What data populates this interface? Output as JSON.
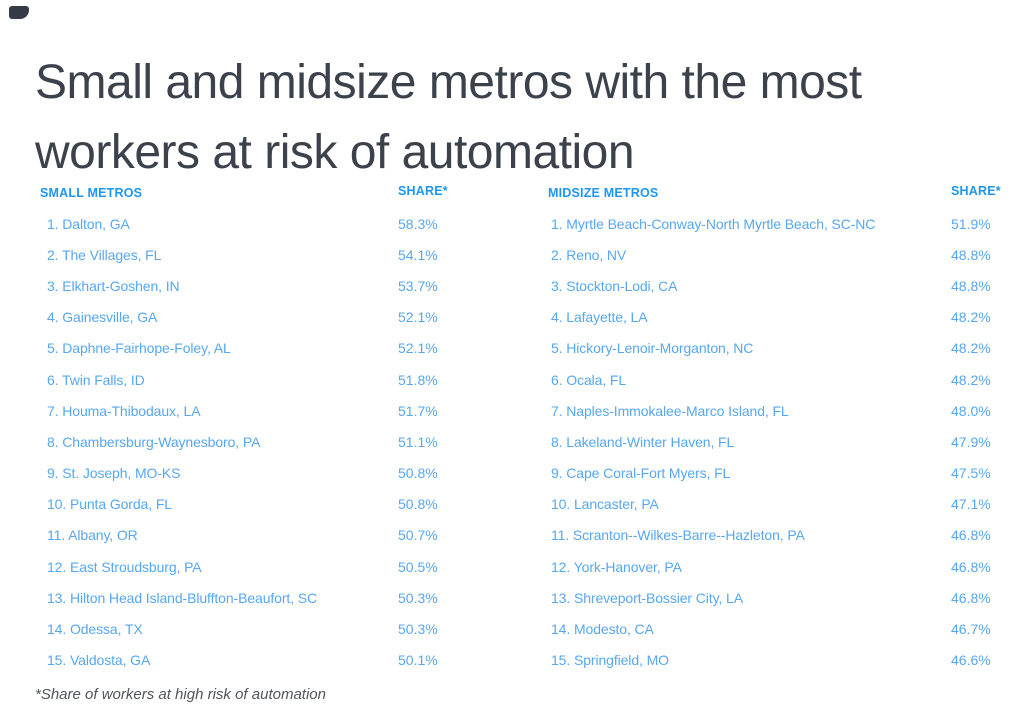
{
  "title": {
    "line1": "Small and midsize metros with the most",
    "line2": "workers at risk of automation"
  },
  "footnote": "*Share of workers at high risk of automation",
  "colors": {
    "title_text": "#3b424c",
    "header_blue": "#1d97f2",
    "row_blue": "#57a7f1",
    "footnote_text": "#50555c",
    "background": "#ffffff",
    "corner_mark": "#353b46"
  },
  "chart_data": {
    "type": "table",
    "title": "Small and midsize metros with the most workers at risk of automation",
    "footnote": "*Share of workers at high risk of automation",
    "value_unit": "percent share of workers at high risk of automation",
    "tables": [
      {
        "name": "Small metros",
        "header": {
          "metros": "SMALL METROS",
          "share": "SHARE*"
        },
        "rows": [
          {
            "rank": 1,
            "metro": "Dalton, GA",
            "share": 58.3
          },
          {
            "rank": 2,
            "metro": "The Villages, FL",
            "share": 54.1
          },
          {
            "rank": 3,
            "metro": "Elkhart-Goshen, IN",
            "share": 53.7
          },
          {
            "rank": 4,
            "metro": "Gainesville, GA",
            "share": 52.1
          },
          {
            "rank": 5,
            "metro": "Daphne-Fairhope-Foley, AL",
            "share": 52.1
          },
          {
            "rank": 6,
            "metro": "Twin Falls, ID",
            "share": 51.8
          },
          {
            "rank": 7,
            "metro": "Houma-Thibodaux, LA",
            "share": 51.7
          },
          {
            "rank": 8,
            "metro": "Chambersburg-Waynesboro, PA",
            "share": 51.1
          },
          {
            "rank": 9,
            "metro": "St. Joseph, MO-KS",
            "share": 50.8
          },
          {
            "rank": 10,
            "metro": "Punta Gorda, FL",
            "share": 50.8
          },
          {
            "rank": 11,
            "metro": "Albany, OR",
            "share": 50.7
          },
          {
            "rank": 12,
            "metro": "East Stroudsburg, PA",
            "share": 50.5
          },
          {
            "rank": 13,
            "metro": "Hilton Head Island-Bluffton-Beaufort, SC",
            "share": 50.3
          },
          {
            "rank": 14,
            "metro": "Odessa, TX",
            "share": 50.3
          },
          {
            "rank": 15,
            "metro": "Valdosta, GA",
            "share": 50.1
          }
        ]
      },
      {
        "name": "Midsize metros",
        "header": {
          "metros": "MIDSIZE METROS",
          "share": "SHARE*"
        },
        "rows": [
          {
            "rank": 1,
            "metro": "Myrtle Beach-Conway-North Myrtle Beach, SC-NC",
            "share": 51.9
          },
          {
            "rank": 2,
            "metro": "Reno, NV",
            "share": 48.8
          },
          {
            "rank": 3,
            "metro": "Stockton-Lodi, CA",
            "share": 48.8
          },
          {
            "rank": 4,
            "metro": "Lafayette, LA",
            "share": 48.2
          },
          {
            "rank": 5,
            "metro": "Hickory-Lenoir-Morganton, NC",
            "share": 48.2
          },
          {
            "rank": 6,
            "metro": "Ocala, FL",
            "share": 48.2
          },
          {
            "rank": 7,
            "metro": "Naples-Immokalee-Marco Island, FL",
            "share": 48.0
          },
          {
            "rank": 8,
            "metro": "Lakeland-Winter Haven, FL",
            "share": 47.9
          },
          {
            "rank": 9,
            "metro": "Cape Coral-Fort Myers, FL",
            "share": 47.5
          },
          {
            "rank": 10,
            "metro": "Lancaster, PA",
            "share": 47.1
          },
          {
            "rank": 11,
            "metro": "Scranton--Wilkes-Barre--Hazleton, PA",
            "share": 46.8
          },
          {
            "rank": 12,
            "metro": "York-Hanover, PA",
            "share": 46.8
          },
          {
            "rank": 13,
            "metro": "Shreveport-Bossier City, LA",
            "share": 46.8
          },
          {
            "rank": 14,
            "metro": "Modesto, CA",
            "share": 46.7
          },
          {
            "rank": 15,
            "metro": "Springfield, MO",
            "share": 46.6
          }
        ]
      }
    ]
  }
}
